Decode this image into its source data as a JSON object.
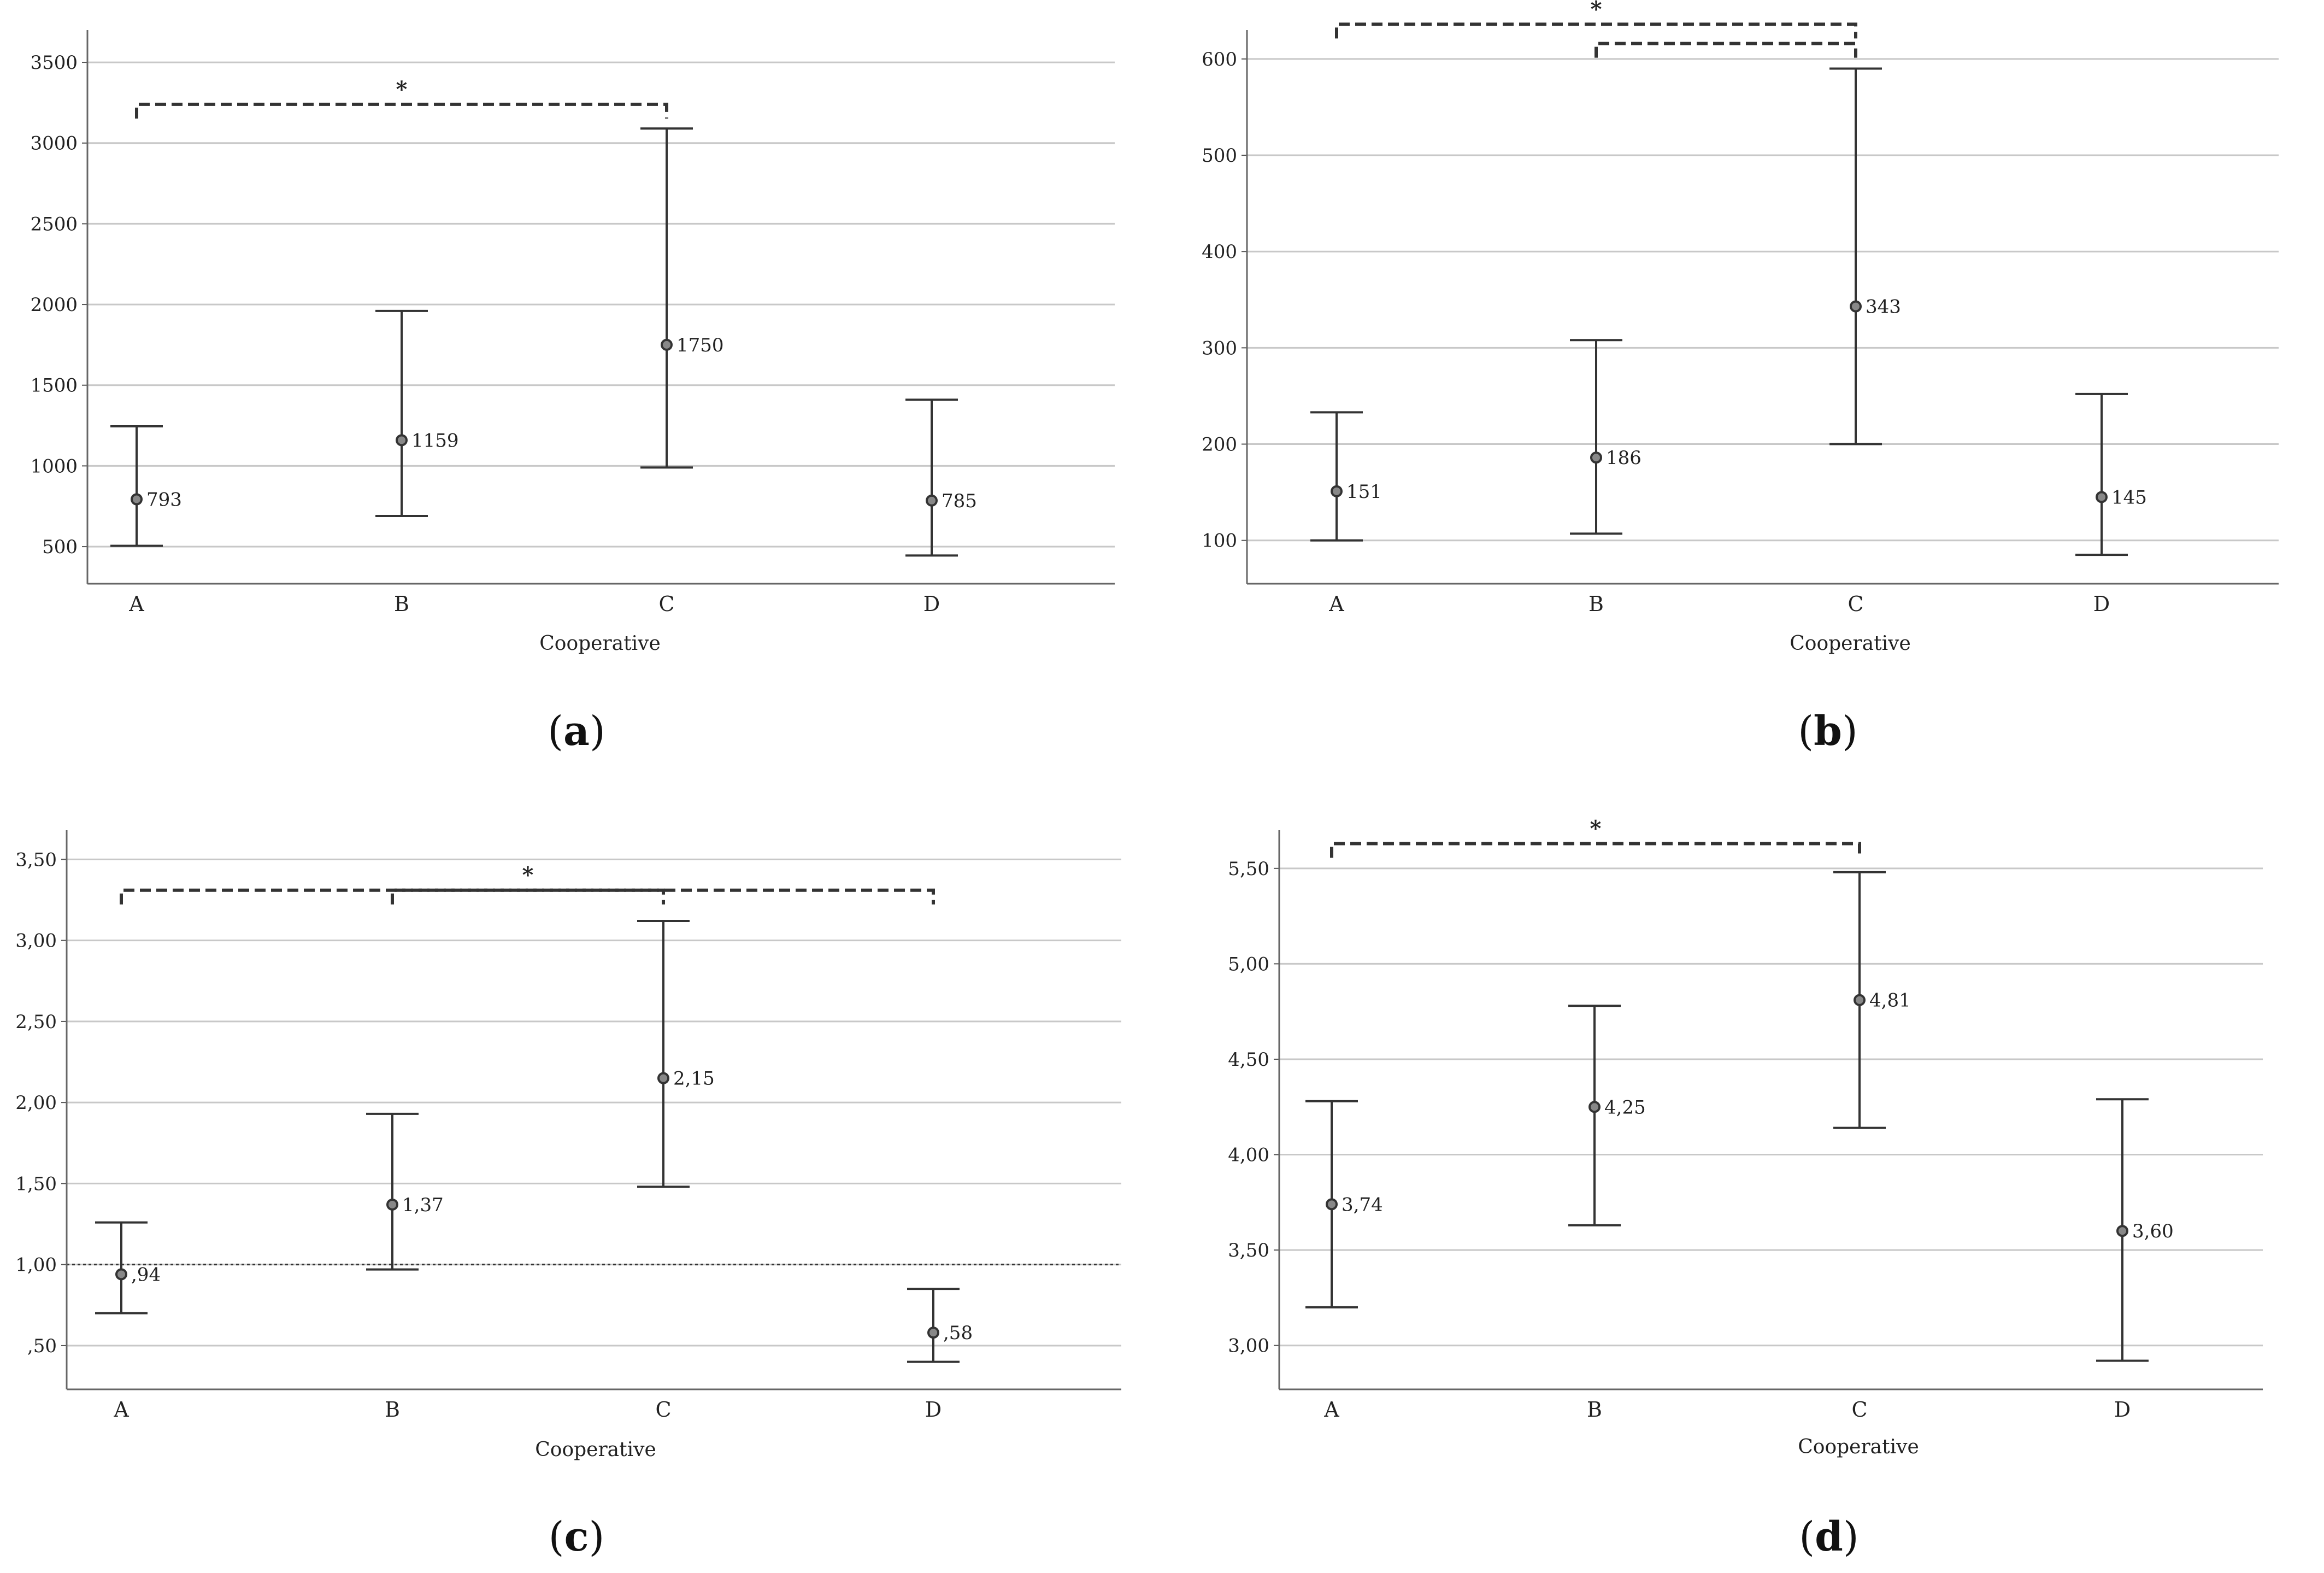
{
  "chart_data": [
    {
      "type": "errorbar",
      "panel_label": "a",
      "xlabel": "Cooperative",
      "categories": [
        "A",
        "B",
        "C",
        "D"
      ],
      "means": [
        793,
        1159,
        1750,
        785
      ],
      "lower": [
        505,
        690,
        990,
        445
      ],
      "upper": [
        1245,
        1960,
        3090,
        1410
      ],
      "value_labels": [
        "793",
        "1159",
        "1750",
        "785"
      ],
      "ylim": [
        270,
        3700
      ],
      "yticks": [
        500,
        1000,
        1500,
        2000,
        2500,
        3000,
        3500
      ],
      "ytick_labels": [
        "500",
        "1000",
        "1500",
        "2000",
        "2500",
        "3000",
        "3500"
      ],
      "grid": true,
      "significance": [
        {
          "from": "A",
          "to": "C",
          "level": 3240,
          "label": "*"
        }
      ]
    },
    {
      "type": "errorbar",
      "panel_label": "b",
      "xlabel": "Cooperative",
      "categories": [
        "A",
        "B",
        "C",
        "D"
      ],
      "means": [
        151,
        186,
        343,
        145
      ],
      "lower": [
        100,
        107,
        200,
        85
      ],
      "upper": [
        233,
        308,
        590,
        252
      ],
      "value_labels": [
        "151",
        "186",
        "343",
        "145"
      ],
      "ylim": [
        55,
        630
      ],
      "yticks": [
        100,
        200,
        300,
        400,
        500,
        600
      ],
      "ytick_labels": [
        "100",
        "200",
        "300",
        "400",
        "500",
        "600"
      ],
      "grid": true,
      "significance": [
        {
          "from": "A",
          "to": "C",
          "level": 636,
          "label": "*"
        },
        {
          "from": "B",
          "to": "C",
          "level": 616,
          "label": ""
        }
      ]
    },
    {
      "type": "errorbar",
      "panel_label": "c",
      "xlabel": "Cooperative",
      "categories": [
        "A",
        "B",
        "C",
        "D"
      ],
      "means": [
        0.94,
        1.37,
        2.15,
        0.58
      ],
      "lower": [
        0.7,
        0.97,
        1.48,
        0.4
      ],
      "upper": [
        1.26,
        1.93,
        3.12,
        0.85
      ],
      "value_labels": [
        ",94",
        "1,37",
        "2,15",
        ",58"
      ],
      "ylim": [
        0.23,
        3.68
      ],
      "yticks": [
        0.5,
        1.0,
        1.5,
        2.0,
        2.5,
        3.0,
        3.5
      ],
      "ytick_labels": [
        ",50",
        "1,00",
        "1,50",
        "2,00",
        "2,50",
        "3,00",
        "3,50"
      ],
      "grid": true,
      "reference_line": 1.0,
      "significance": [
        {
          "from": "A",
          "to": "D",
          "level": 3.31,
          "label": ""
        },
        {
          "from": "B",
          "to": "C",
          "level": 3.31,
          "label": "*"
        }
      ]
    },
    {
      "type": "errorbar",
      "panel_label": "d",
      "xlabel": "Cooperative",
      "categories": [
        "A",
        "B",
        "C",
        "D"
      ],
      "means": [
        3.74,
        4.25,
        4.81,
        3.6
      ],
      "lower": [
        3.2,
        3.63,
        4.14,
        2.92
      ],
      "upper": [
        4.28,
        4.78,
        5.48,
        4.29
      ],
      "value_labels": [
        "3,74",
        "4,25",
        "4,81",
        "3,60"
      ],
      "ylim": [
        2.77,
        5.7
      ],
      "yticks": [
        3.0,
        3.5,
        4.0,
        4.5,
        5.0,
        5.5
      ],
      "ytick_labels": [
        "3,00",
        "3,50",
        "4,00",
        "4,50",
        "5,00",
        "5,50"
      ],
      "grid": true,
      "significance": [
        {
          "from": "A",
          "to": "C",
          "level": 5.63,
          "label": "*"
        }
      ]
    }
  ]
}
